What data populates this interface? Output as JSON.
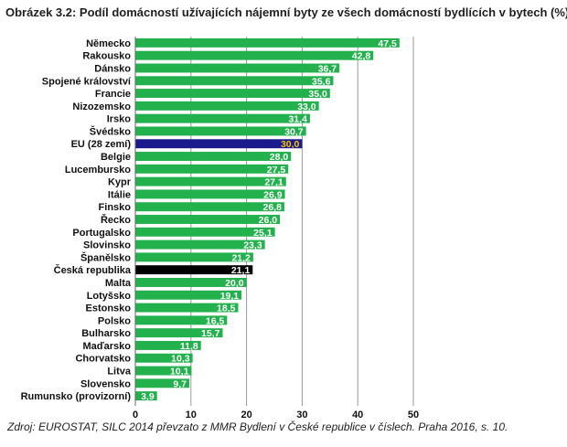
{
  "title": "Obrázek 3.2: Podíl domácností užívajících nájemní byty ze všech domácností bydlících v bytech (%)",
  "source": "Zdroj: EUROSTAT, SILC 2014 převzato z MMR Bydlení v České republice v číslech. Praha 2016, s. 10.",
  "colors": {
    "default_bar": "#22b14c",
    "eu_bar": "#1a1a8c",
    "cz_bar": "#000000",
    "grid": "#9a9a9a",
    "value_text": "#ffffff",
    "eu_value_text": "#f2c400"
  },
  "chart_data": {
    "type": "bar",
    "orientation": "horizontal",
    "categories": [
      "Německo",
      "Rakousko",
      "Dánsko",
      "Spojené království",
      "Francie",
      "Nizozemsko",
      "Irsko",
      "Švédsko",
      "EU (28 zemí)",
      "Belgie",
      "Lucembursko",
      "Kypr",
      "Itálie",
      "Finsko",
      "Řecko",
      "Portugalsko",
      "Slovinsko",
      "Španělsko",
      "Česká republika",
      "Malta",
      "Lotyšsko",
      "Estonsko",
      "Polsko",
      "Bulharsko",
      "Maďarsko",
      "Chorvatsko",
      "Litva",
      "Slovensko",
      "Rumunsko (provizorní)"
    ],
    "values": [
      47.5,
      42.8,
      36.7,
      35.6,
      35.0,
      33.0,
      31.4,
      30.7,
      30.0,
      28.0,
      27.5,
      27.1,
      26.9,
      26.8,
      26.0,
      25.1,
      23.3,
      21.2,
      21.1,
      20.0,
      19.1,
      18.5,
      16.5,
      15.7,
      11.8,
      10.3,
      10.1,
      9.7,
      3.9
    ],
    "value_labels": [
      "47,5",
      "42,8",
      "36,7",
      "35,6",
      "35,0",
      "33,0",
      "31,4",
      "30,7",
      "30,0",
      "28,0",
      "27,5",
      "27,1",
      "26,9",
      "26,8",
      "26,0",
      "25,1",
      "23,3",
      "21,2",
      "21,1",
      "20,0",
      "19,1",
      "18,5",
      "16,5",
      "15,7",
      "11,8",
      "10,3",
      "10,1",
      "9,7",
      "3,9"
    ],
    "highlight": {
      "EU (28 zemí)": "eu_bar",
      "Česká republika": "cz_bar"
    },
    "xlim": [
      0,
      50
    ],
    "xticks": [
      0,
      10,
      20,
      30,
      40,
      50
    ],
    "xtick_labels": [
      "0",
      "10",
      "20",
      "30",
      "40",
      "50"
    ],
    "grid": true,
    "legend": "none"
  }
}
